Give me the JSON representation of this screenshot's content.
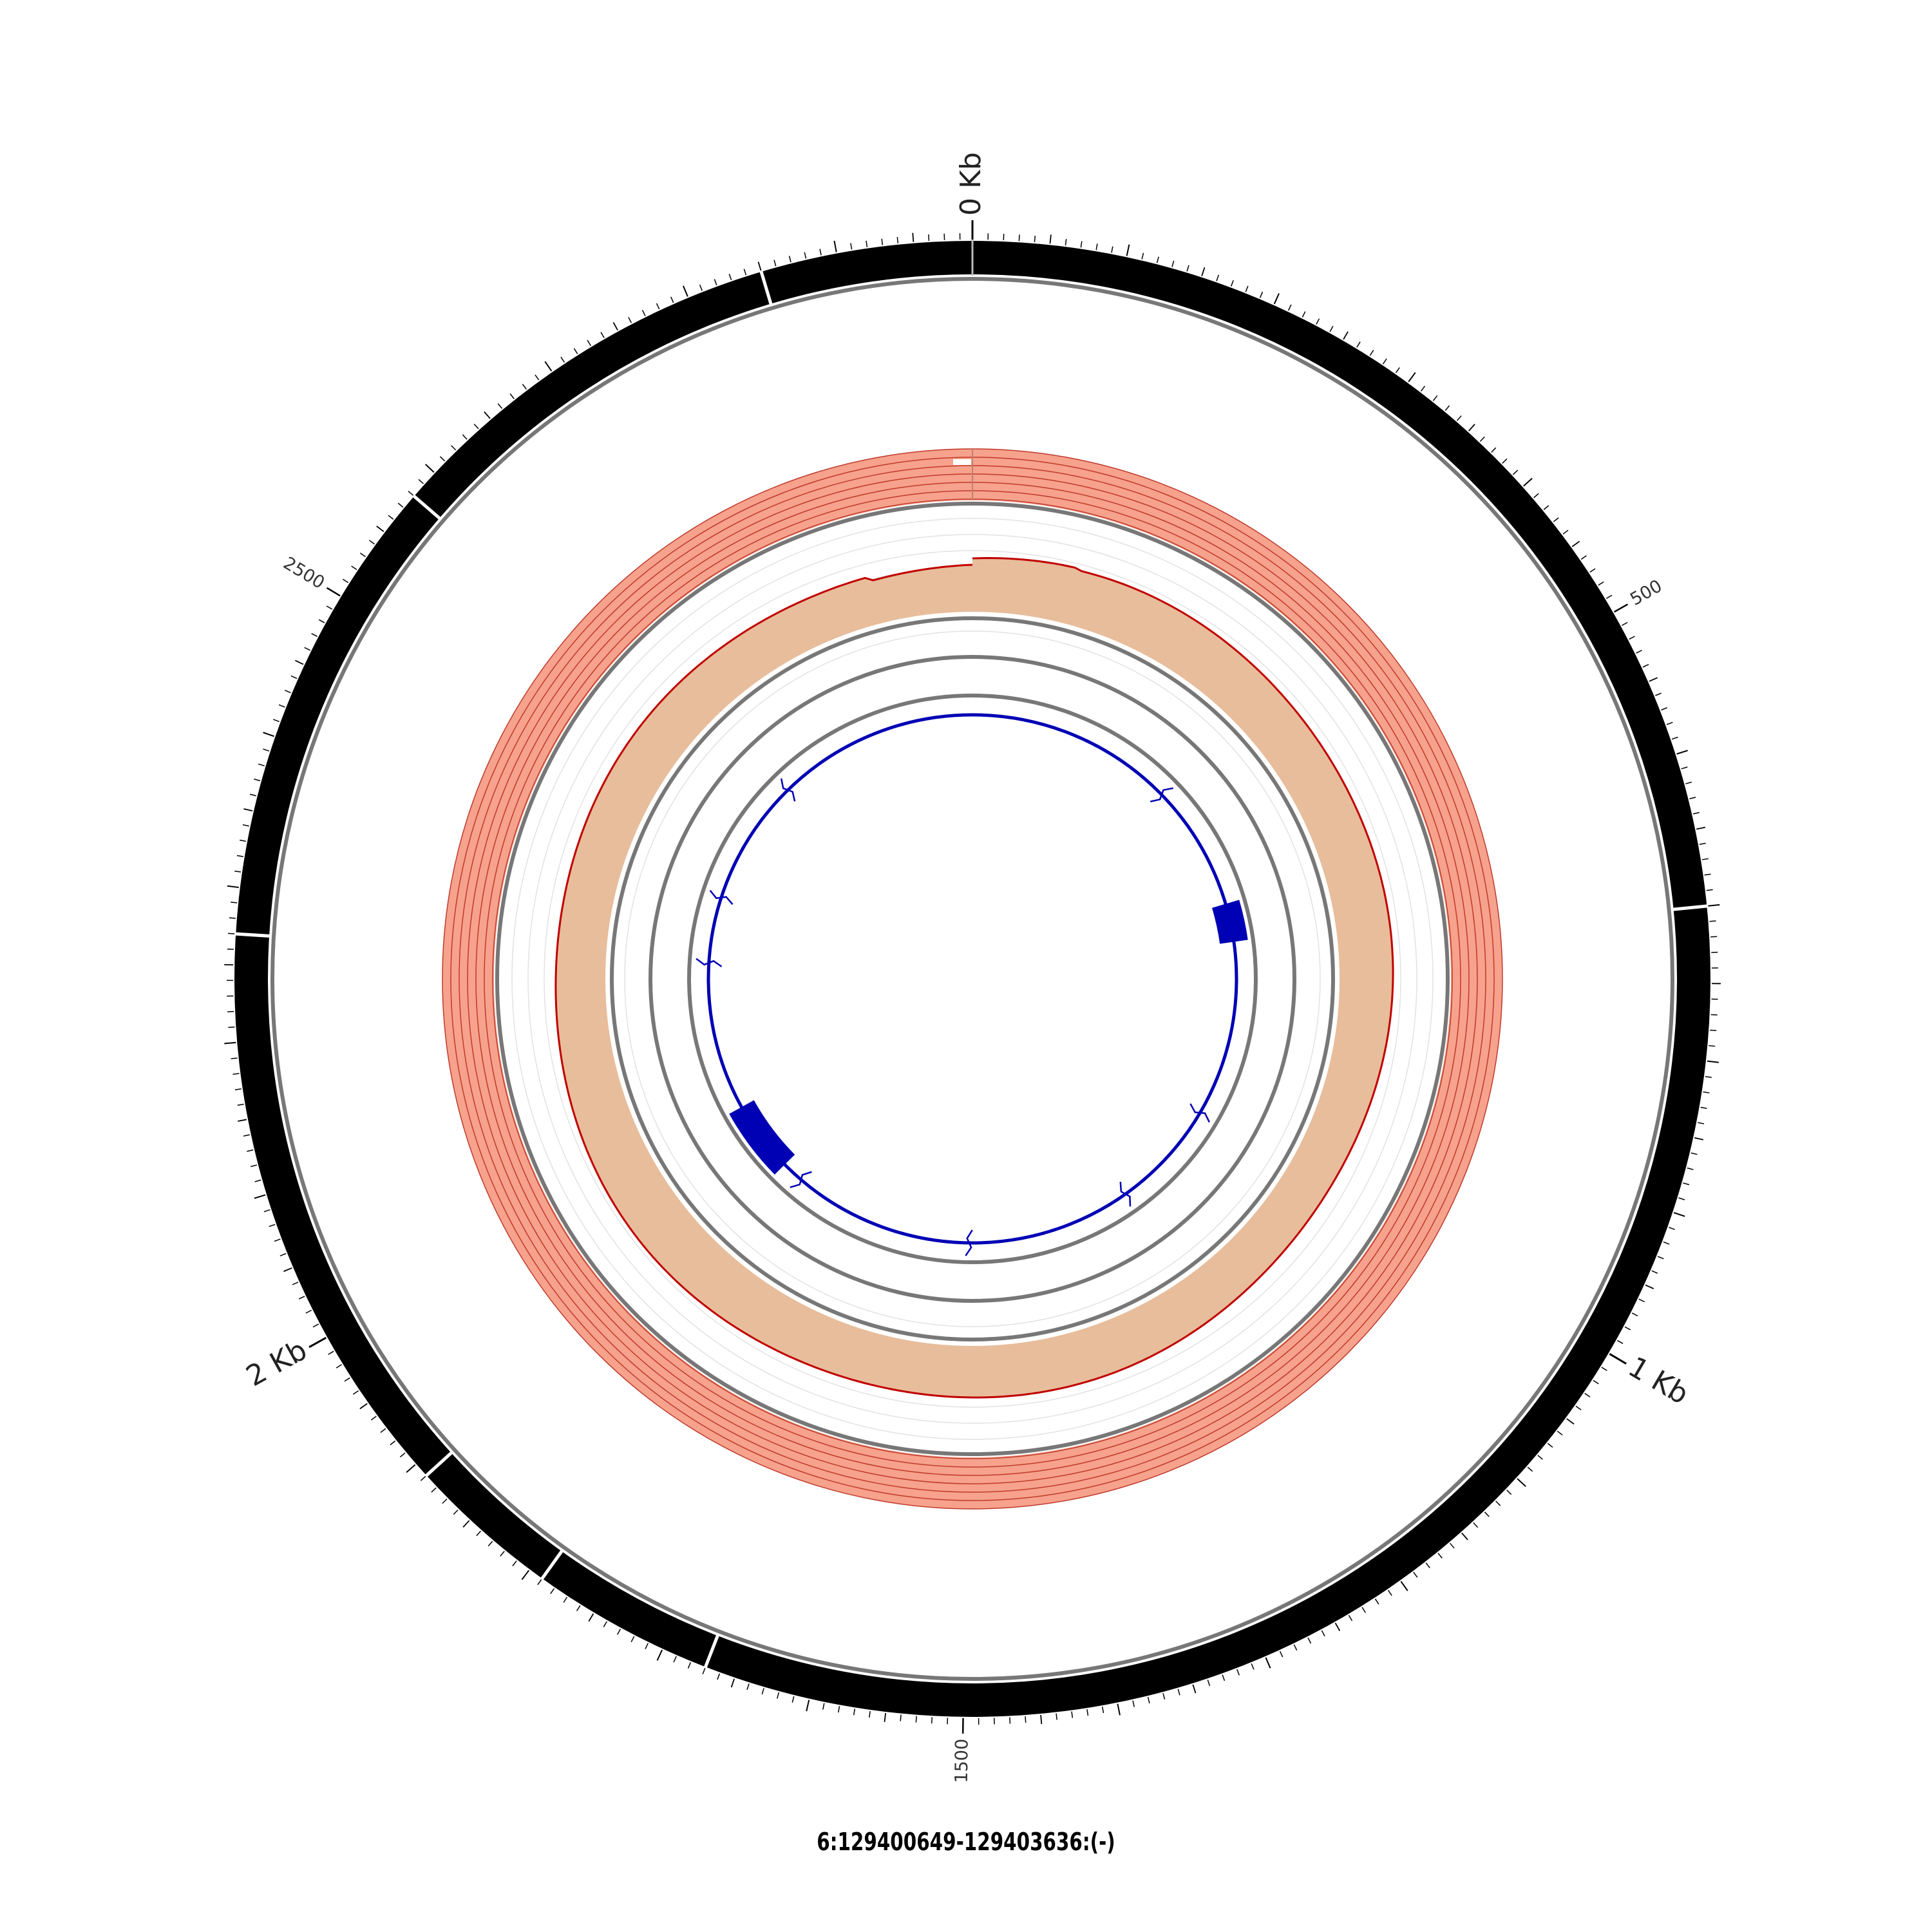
{
  "chart_data": {
    "type": "circular-genome",
    "region_label": "6:129400649-129403636:(-)",
    "region_length_bp": 2988,
    "major_tick_labels": [
      {
        "value": 0,
        "text": "0 Kb"
      },
      {
        "value": 1000,
        "text": "1 Kb"
      },
      {
        "value": 2000,
        "text": "2 Kb"
      }
    ],
    "minor_tick_labels": [
      {
        "value": 500,
        "text": "500"
      },
      {
        "value": 1500,
        "text": "1500"
      },
      {
        "value": 2500,
        "text": "2500"
      }
    ],
    "outer_band_breaks_bp": [
      2850,
      700,
      1670,
      1790,
      1890,
      2270,
      2580
    ],
    "signal_track_color": "#f6a28c",
    "signal_track_line_color": "#c0392b",
    "coverage_fill_color": "#e8bd9b",
    "coverage_line_color": "#c00000",
    "gene_color": "#0000b4",
    "exons_bp": [
      {
        "start": 610,
        "end": 680
      },
      {
        "start": 1870,
        "end": 2000
      }
    ],
    "intron_markers_bp": [
      380,
      1000,
      1200,
      1500,
      1830,
      2270,
      2390,
      2620
    ]
  }
}
